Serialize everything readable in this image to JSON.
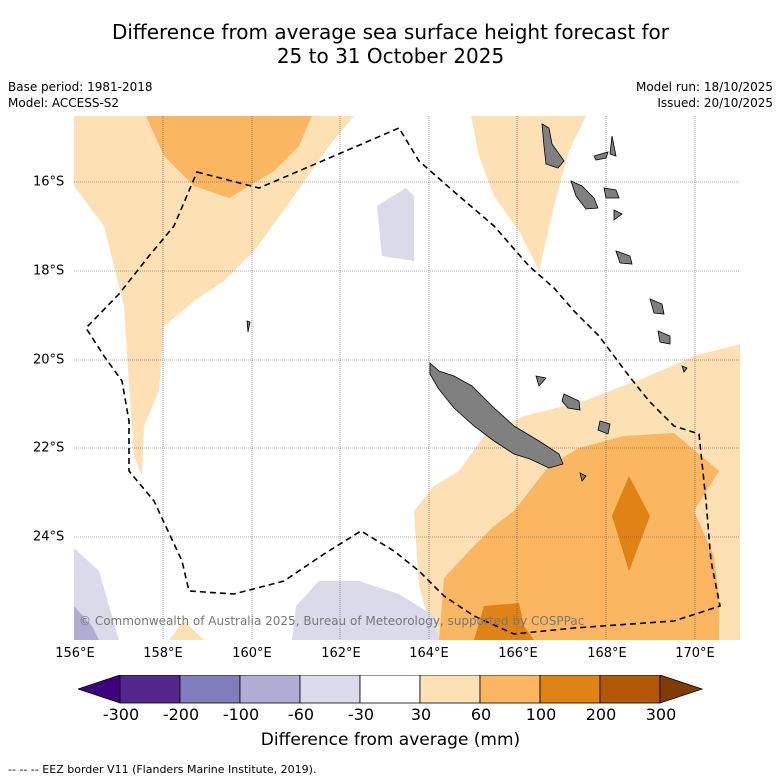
{
  "header": {
    "title_line1": "Difference from average sea surface height forecast for",
    "title_line2": "25 to 31 October 2025",
    "base_period": "Base period: 1981-2018",
    "model": "Model: ACCESS-S2",
    "model_run": "Model run: 18/10/2025",
    "issued": "Issued: 20/10/2025"
  },
  "axes": {
    "lon_labels": [
      "156°E",
      "158°E",
      "160°E",
      "162°E",
      "164°E",
      "166°E",
      "168°E",
      "170°E"
    ],
    "lat_labels": [
      "16°S",
      "18°S",
      "20°S",
      "22°S",
      "24°S"
    ]
  },
  "map": {
    "copyright": "© Commonwealth of Australia 2025, Bureau of Meteorology, supported by COSPPac",
    "land_color": "#808080"
  },
  "colorbar": {
    "colors": [
      "#3f007d",
      "#54278f",
      "#807dba",
      "#b1acd4",
      "#dadaeb",
      "#ffffff",
      "#fde0b4",
      "#fbb662",
      "#e08214",
      "#b35806",
      "#7f3b08"
    ],
    "tick_labels": [
      "-300",
      "-200",
      "-100",
      "-60",
      "-30",
      "30",
      "60",
      "100",
      "200",
      "300"
    ],
    "title": "Difference from average (mm)"
  },
  "footer": {
    "eez_note": "-- -- -- EEZ border V11 (Flanders Marine Institute, 2019)."
  }
}
